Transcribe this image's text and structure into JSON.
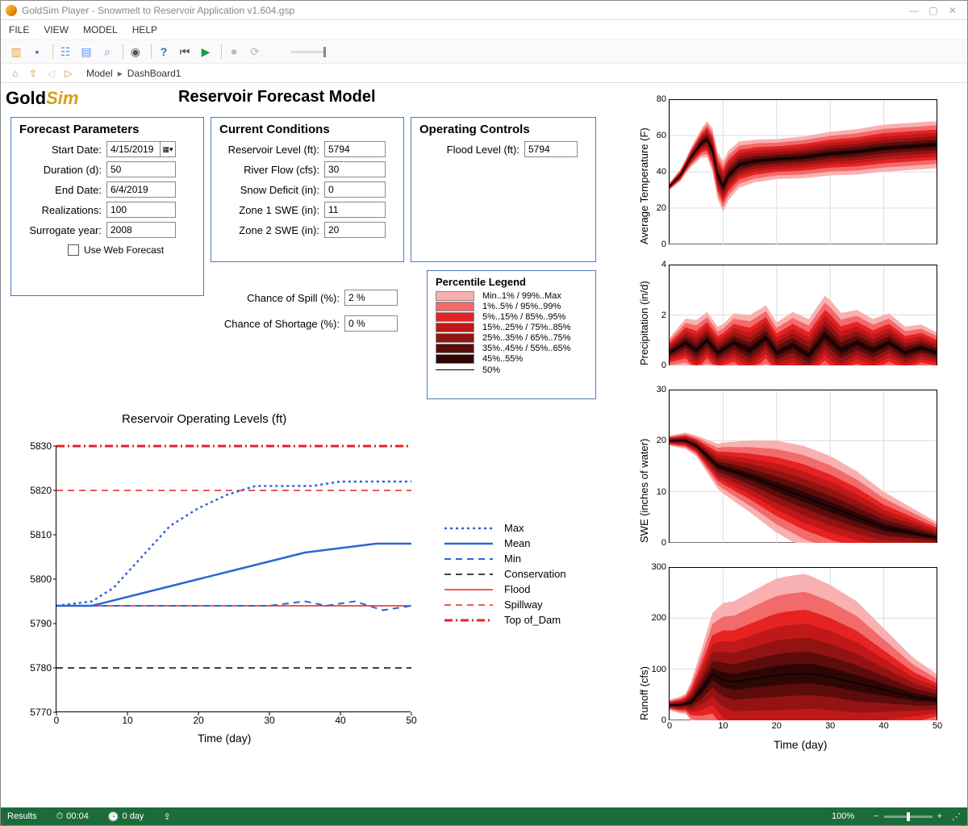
{
  "window": {
    "title": "GoldSim Player - Snowmelt to Reservoir Application v1.604.gsp"
  },
  "menubar": [
    "FILE",
    "VIEW",
    "MODEL",
    "HELP"
  ],
  "breadcrumb": [
    "Model",
    "DashBoard1"
  ],
  "logo": {
    "a": "Gold",
    "b": "Sim"
  },
  "page_title": "Reservoir Forecast Model",
  "forecast": {
    "title": "Forecast Parameters",
    "start_label": "Start Date:",
    "start": "4/15/2019",
    "dur_label": "Duration (d):",
    "dur": "50",
    "end_label": "End Date:",
    "end": "6/4/2019",
    "real_label": "Realizations:",
    "real": "100",
    "surr_label": "Surrogate year:",
    "surr": "2008",
    "web_label": "Use Web Forecast"
  },
  "conditions": {
    "title": "Current Conditions",
    "res_label": "Reservoir Level (ft):",
    "res": "5794",
    "flow_label": "River Flow (cfs):",
    "flow": "30",
    "snow_label": "Snow Deficit (in):",
    "snow": "0",
    "z1_label": "Zone 1 SWE (in):",
    "z1": "11",
    "z2_label": "Zone 2 SWE (in):",
    "z2": "20"
  },
  "controls": {
    "title": "Operating Controls",
    "flood_label": "Flood Level (ft):",
    "flood": "5794"
  },
  "outputs": {
    "spill_label": "Chance of Spill (%):",
    "spill": "2 %",
    "short_label": "Chance of Shortage (%):",
    "short": "0 %"
  },
  "percentile_legend": {
    "title": "Percentile Legend",
    "bands": [
      {
        "color": "#f9b0b0",
        "label": "Min..1% / 99%..Max"
      },
      {
        "color": "#f26a6a",
        "label": "1%..5% / 95%..99%"
      },
      {
        "color": "#e62222",
        "label": "5%..15% / 85%..95%"
      },
      {
        "color": "#c01818",
        "label": "15%..25% / 75%..85%"
      },
      {
        "color": "#931313",
        "label": "25%..35% / 65%..75%"
      },
      {
        "color": "#5d0c0c",
        "label": "35%..45% / 55%..65%"
      },
      {
        "color": "#2e0606",
        "label": "45%..55%"
      }
    ],
    "median_label": "50%"
  },
  "main_chart": {
    "title": "Reservoir Operating Levels (ft)",
    "xlabel": "Time (day)",
    "xlim": [
      0,
      50
    ],
    "ylim": [
      5770,
      5830
    ],
    "xticks": [
      0,
      10,
      20,
      30,
      40,
      50
    ],
    "yticks": [
      5770,
      5780,
      5790,
      5800,
      5810,
      5820,
      5830
    ],
    "conservation": 5780,
    "flood": 5794,
    "spillway": 5820,
    "top_of_dam": 5830,
    "max": [
      [
        0,
        5794
      ],
      [
        5,
        5795
      ],
      [
        8,
        5798
      ],
      [
        12,
        5805
      ],
      [
        16,
        5812
      ],
      [
        20,
        5816
      ],
      [
        24,
        5819
      ],
      [
        28,
        5821
      ],
      [
        32,
        5821
      ],
      [
        36,
        5821
      ],
      [
        40,
        5822
      ],
      [
        45,
        5822
      ],
      [
        50,
        5822
      ]
    ],
    "mean": [
      [
        0,
        5794
      ],
      [
        5,
        5794
      ],
      [
        10,
        5796
      ],
      [
        15,
        5798
      ],
      [
        20,
        5800
      ],
      [
        25,
        5802
      ],
      [
        30,
        5804
      ],
      [
        35,
        5806
      ],
      [
        40,
        5807
      ],
      [
        45,
        5808
      ],
      [
        50,
        5808
      ]
    ],
    "min": [
      [
        0,
        5794
      ],
      [
        10,
        5794
      ],
      [
        20,
        5794
      ],
      [
        30,
        5794
      ],
      [
        35,
        5795
      ],
      [
        38,
        5794
      ],
      [
        42,
        5795
      ],
      [
        46,
        5793
      ],
      [
        50,
        5794
      ]
    ],
    "legend": [
      "Max",
      "Mean",
      "Min",
      "Conservation",
      "Flood",
      "Spillway",
      "Top of_Dam"
    ],
    "colors": {
      "blue": "#2b67d1",
      "red": "#e62222",
      "black": "#000000"
    }
  },
  "small_charts": {
    "xlim": [
      0,
      50
    ],
    "xticks": [
      0,
      10,
      20,
      30,
      40,
      50
    ],
    "xlabel": "Time (day)",
    "band_colors": [
      "#f9b0b0",
      "#f26a6a",
      "#e62222",
      "#c01818",
      "#931313",
      "#5d0c0c",
      "#2e0606"
    ],
    "temp": {
      "ylabel": "Average Temperature (F)",
      "ylim": [
        0,
        80
      ],
      "yticks": [
        0,
        20,
        40,
        60,
        80
      ],
      "median": [
        [
          0,
          32
        ],
        [
          2,
          38
        ],
        [
          4,
          48
        ],
        [
          5,
          52
        ],
        [
          6,
          56
        ],
        [
          7,
          58
        ],
        [
          8,
          52
        ],
        [
          9,
          38
        ],
        [
          10,
          32
        ],
        [
          11,
          38
        ],
        [
          13,
          44
        ],
        [
          16,
          46
        ],
        [
          20,
          47
        ],
        [
          25,
          48
        ],
        [
          30,
          50
        ],
        [
          35,
          51
        ],
        [
          40,
          53
        ],
        [
          45,
          54
        ],
        [
          50,
          55
        ]
      ],
      "spread": [
        [
          0,
          2
        ],
        [
          3,
          4
        ],
        [
          6,
          8
        ],
        [
          8,
          12
        ],
        [
          10,
          14
        ],
        [
          15,
          12
        ],
        [
          20,
          11
        ],
        [
          30,
          12
        ],
        [
          40,
          13
        ],
        [
          50,
          13
        ]
      ]
    },
    "precip": {
      "ylabel": "Precipitation (in/d)",
      "ylim": [
        0,
        4
      ],
      "yticks": [
        0,
        2,
        4
      ],
      "median": [
        [
          0,
          0.5
        ],
        [
          3,
          0.9
        ],
        [
          5,
          0.6
        ],
        [
          7,
          1.0
        ],
        [
          9,
          0.5
        ],
        [
          12,
          0.9
        ],
        [
          15,
          0.6
        ],
        [
          18,
          1.1
        ],
        [
          20,
          0.5
        ],
        [
          23,
          0.8
        ],
        [
          26,
          0.4
        ],
        [
          29,
          1.2
        ],
        [
          32,
          0.6
        ],
        [
          35,
          0.9
        ],
        [
          38,
          0.6
        ],
        [
          41,
          0.9
        ],
        [
          44,
          0.5
        ],
        [
          47,
          0.7
        ],
        [
          50,
          0.5
        ]
      ],
      "spread": [
        [
          0,
          0.6
        ],
        [
          5,
          1.2
        ],
        [
          10,
          1.0
        ],
        [
          15,
          1.4
        ],
        [
          20,
          1.2
        ],
        [
          25,
          1.4
        ],
        [
          30,
          1.6
        ],
        [
          35,
          1.3
        ],
        [
          40,
          1.2
        ],
        [
          45,
          1.0
        ],
        [
          50,
          0.8
        ]
      ]
    },
    "swe": {
      "ylabel": "SWE (inches of water)",
      "ylim": [
        0,
        30
      ],
      "yticks": [
        0,
        10,
        20,
        30
      ],
      "median": [
        [
          0,
          20
        ],
        [
          3,
          20
        ],
        [
          5,
          19
        ],
        [
          7,
          17
        ],
        [
          9,
          15
        ],
        [
          12,
          14
        ],
        [
          15,
          13
        ],
        [
          20,
          11
        ],
        [
          25,
          9
        ],
        [
          30,
          7
        ],
        [
          35,
          5
        ],
        [
          40,
          3
        ],
        [
          45,
          2
        ],
        [
          50,
          1
        ]
      ],
      "spread": [
        [
          0,
          1
        ],
        [
          5,
          2
        ],
        [
          10,
          5
        ],
        [
          15,
          7
        ],
        [
          20,
          9
        ],
        [
          25,
          10
        ],
        [
          30,
          10
        ],
        [
          35,
          9
        ],
        [
          40,
          7
        ],
        [
          45,
          5
        ],
        [
          50,
          3
        ]
      ]
    },
    "runoff": {
      "ylabel": "Runoff (cfs)",
      "ylim": [
        0,
        300
      ],
      "yticks": [
        0,
        100,
        200,
        300
      ],
      "median": [
        [
          0,
          30
        ],
        [
          2,
          30
        ],
        [
          4,
          35
        ],
        [
          6,
          60
        ],
        [
          8,
          90
        ],
        [
          10,
          80
        ],
        [
          12,
          75
        ],
        [
          15,
          80
        ],
        [
          18,
          85
        ],
        [
          22,
          90
        ],
        [
          26,
          92
        ],
        [
          30,
          85
        ],
        [
          34,
          75
        ],
        [
          38,
          65
        ],
        [
          42,
          55
        ],
        [
          46,
          45
        ],
        [
          50,
          40
        ]
      ],
      "spread": [
        [
          0,
          10
        ],
        [
          3,
          20
        ],
        [
          5,
          60
        ],
        [
          8,
          120
        ],
        [
          10,
          150
        ],
        [
          15,
          170
        ],
        [
          20,
          190
        ],
        [
          25,
          195
        ],
        [
          30,
          180
        ],
        [
          35,
          160
        ],
        [
          40,
          120
        ],
        [
          45,
          80
        ],
        [
          50,
          50
        ]
      ]
    }
  },
  "status": {
    "left": "Results",
    "time": "00:04",
    "day": "0 day",
    "zoom": "100%"
  }
}
